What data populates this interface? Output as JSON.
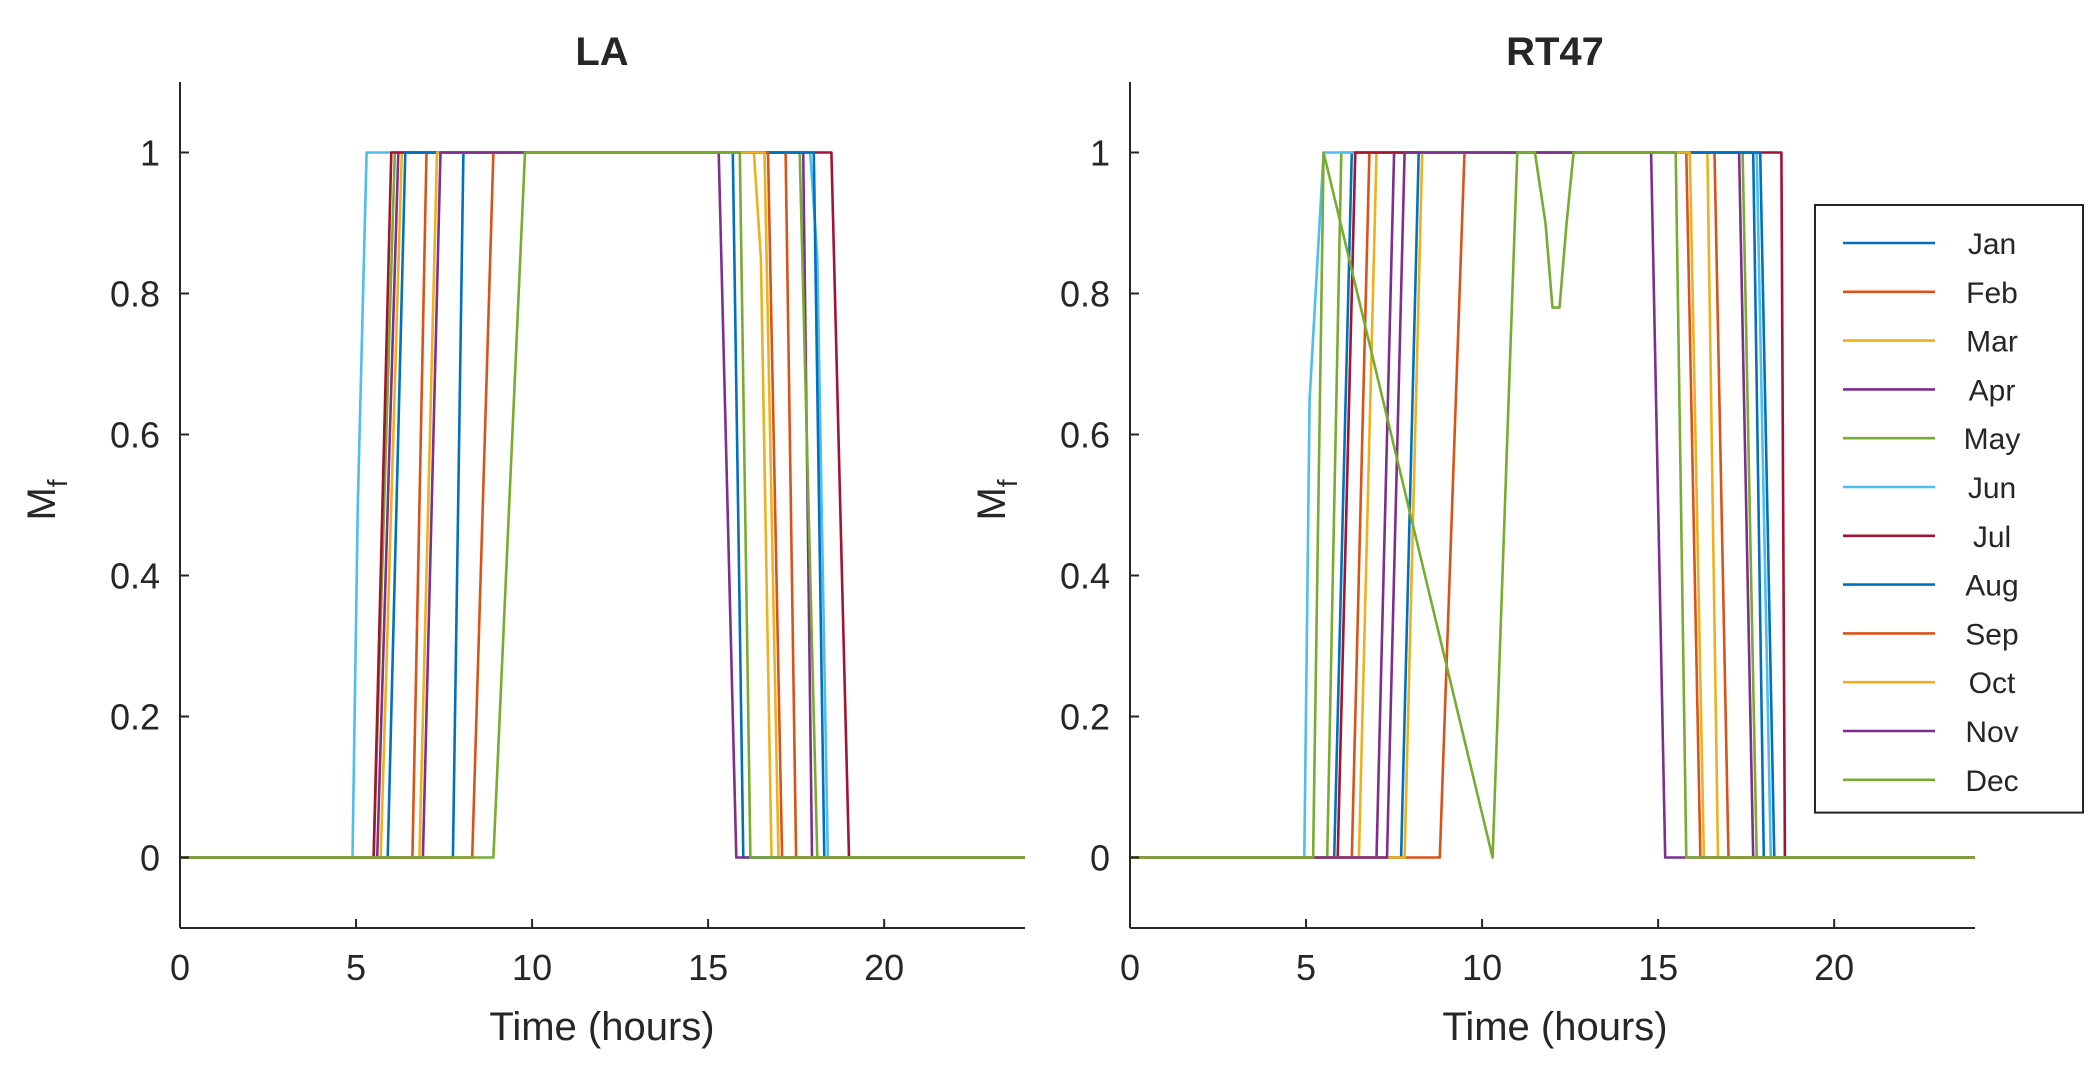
{
  "chart_data": [
    {
      "type": "line",
      "title": "LA",
      "xlabel": "Time (hours)",
      "ylabel": "M",
      "ylabel_sub": "f",
      "xlim": [
        0,
        24
      ],
      "ylim": [
        -0.1,
        1.1
      ],
      "xticks": [
        0,
        5,
        10,
        15,
        20
      ],
      "yticks": [
        0,
        0.2,
        0.4,
        0.6,
        0.8,
        1
      ],
      "xtick_labels": [
        "0",
        "5",
        "10",
        "15",
        "20"
      ],
      "ytick_labels": [
        "0",
        "0.2",
        "0.4",
        "0.6",
        "0.8",
        "1"
      ],
      "grid": false,
      "series": [
        {
          "name": "Jan",
          "color": "#0072BD",
          "x": [
            0,
            7.75,
            8.05,
            24
          ],
          "x2": [
            0,
            15.7,
            16.0,
            24
          ],
          "points": [
            [
              0,
              0
            ],
            [
              7.75,
              0
            ],
            [
              8.05,
              1
            ],
            [
              15.7,
              1
            ],
            [
              16.0,
              0
            ],
            [
              24,
              0
            ]
          ]
        },
        {
          "name": "Feb",
          "color": "#D95319",
          "points": [
            [
              0,
              0
            ],
            [
              6.6,
              0
            ],
            [
              7.0,
              1
            ],
            [
              17.2,
              1
            ],
            [
              17.5,
              0
            ],
            [
              24,
              0
            ]
          ]
        },
        {
          "name": "Mar",
          "color": "#EDB120",
          "points": [
            [
              0,
              0
            ],
            [
              5.7,
              0
            ],
            [
              6.3,
              1
            ],
            [
              16.3,
              1
            ],
            [
              16.5,
              0.85
            ],
            [
              16.8,
              0
            ],
            [
              24,
              0
            ]
          ]
        },
        {
          "name": "Apr",
          "color": "#7E2F8E",
          "points": [
            [
              0,
              0
            ],
            [
              5.6,
              0
            ],
            [
              6.2,
              1
            ],
            [
              17.7,
              1
            ],
            [
              17.95,
              0
            ],
            [
              24,
              0
            ]
          ]
        },
        {
          "name": "May",
          "color": "#77AC30",
          "points": [
            [
              0,
              0
            ],
            [
              5.5,
              0
            ],
            [
              6.1,
              1
            ],
            [
              17.6,
              1
            ],
            [
              18.1,
              0
            ],
            [
              24,
              0
            ]
          ]
        },
        {
          "name": "Jun",
          "color": "#4DBEEE",
          "points": [
            [
              0,
              0
            ],
            [
              4.9,
              0
            ],
            [
              5.05,
              0.5
            ],
            [
              5.3,
              1
            ],
            [
              17.9,
              1
            ],
            [
              18.1,
              0.85
            ],
            [
              18.4,
              0
            ],
            [
              24,
              0
            ]
          ]
        },
        {
          "name": "Jul",
          "color": "#A2142F",
          "points": [
            [
              0,
              0
            ],
            [
              5.5,
              0
            ],
            [
              6.0,
              1
            ],
            [
              18.5,
              1
            ],
            [
              19.0,
              0
            ],
            [
              24,
              0
            ]
          ]
        },
        {
          "name": "Aug",
          "color": "#0072BD",
          "points": [
            [
              0,
              0
            ],
            [
              5.9,
              0
            ],
            [
              6.4,
              1
            ],
            [
              18.0,
              1
            ],
            [
              18.3,
              0
            ],
            [
              24,
              0
            ]
          ]
        },
        {
          "name": "Sep",
          "color": "#D95319",
          "points": [
            [
              0,
              0
            ],
            [
              8.3,
              0
            ],
            [
              8.9,
              1
            ],
            [
              16.7,
              1
            ],
            [
              17.1,
              0
            ],
            [
              24,
              0
            ]
          ]
        },
        {
          "name": "Oct",
          "color": "#EDB120",
          "points": [
            [
              0,
              0
            ],
            [
              6.8,
              0
            ],
            [
              7.3,
              1
            ],
            [
              16.6,
              1
            ],
            [
              17.0,
              0
            ],
            [
              24,
              0
            ]
          ]
        },
        {
          "name": "Nov",
          "color": "#7E2F8E",
          "points": [
            [
              0,
              0
            ],
            [
              6.9,
              0
            ],
            [
              7.4,
              1
            ],
            [
              15.3,
              1
            ],
            [
              15.8,
              0
            ],
            [
              24,
              0
            ]
          ]
        },
        {
          "name": "Dec",
          "color": "#77AC30",
          "points": [
            [
              0,
              0
            ],
            [
              8.9,
              0
            ],
            [
              9.8,
              1
            ],
            [
              15.9,
              1
            ],
            [
              16.2,
              0
            ],
            [
              24,
              0
            ]
          ]
        }
      ]
    },
    {
      "type": "line",
      "title": "RT47",
      "xlabel": "Time (hours)",
      "ylabel": "M",
      "ylabel_sub": "f",
      "xlim": [
        0,
        24
      ],
      "ylim": [
        -0.1,
        1.1
      ],
      "xticks": [
        0,
        5,
        10,
        15,
        20
      ],
      "yticks": [
        0,
        0.2,
        0.4,
        0.6,
        0.8,
        1
      ],
      "xtick_labels": [
        "0",
        "5",
        "10",
        "15",
        "20"
      ],
      "ytick_labels": [
        "0",
        "0.2",
        "0.4",
        "0.6",
        "0.8",
        "1"
      ],
      "grid": false,
      "legend_position": "right",
      "series": [
        {
          "name": "Jan",
          "color": "#0072BD",
          "points": [
            [
              0,
              0
            ],
            [
              5.8,
              0
            ],
            [
              6.3,
              1
            ],
            [
              17.7,
              1
            ],
            [
              18.0,
              0
            ],
            [
              24,
              0
            ]
          ]
        },
        {
          "name": "Feb",
          "color": "#D95319",
          "points": [
            [
              0,
              0
            ],
            [
              6.3,
              0
            ],
            [
              6.8,
              1
            ],
            [
              16.6,
              1
            ],
            [
              17.0,
              0
            ],
            [
              24,
              0
            ]
          ]
        },
        {
          "name": "Mar",
          "color": "#EDB120",
          "points": [
            [
              0,
              0
            ],
            [
              6.5,
              0
            ],
            [
              7.0,
              1
            ],
            [
              16.4,
              1
            ],
            [
              16.7,
              0
            ],
            [
              24,
              0
            ]
          ]
        },
        {
          "name": "Apr",
          "color": "#7E2F8E",
          "points": [
            [
              0,
              0
            ],
            [
              7.0,
              0
            ],
            [
              7.5,
              1
            ],
            [
              17.3,
              1
            ],
            [
              17.7,
              0
            ],
            [
              24,
              0
            ]
          ]
        },
        {
          "name": "May",
          "color": "#77AC30",
          "points": [
            [
              0,
              0
            ],
            [
              5.6,
              0
            ],
            [
              6.0,
              1
            ],
            [
              17.4,
              1
            ],
            [
              17.8,
              0
            ],
            [
              24,
              0
            ]
          ]
        },
        {
          "name": "Jun",
          "color": "#4DBEEE",
          "points": [
            [
              0,
              0
            ],
            [
              4.95,
              0
            ],
            [
              5.1,
              0.65
            ],
            [
              5.5,
              1
            ],
            [
              17.8,
              1
            ],
            [
              18.2,
              0
            ],
            [
              24,
              0
            ]
          ]
        },
        {
          "name": "Jul",
          "color": "#A2142F",
          "points": [
            [
              0,
              0
            ],
            [
              5.9,
              0
            ],
            [
              6.4,
              1
            ],
            [
              18.5,
              1
            ],
            [
              18.6,
              0
            ],
            [
              24,
              0
            ]
          ]
        },
        {
          "name": "Aug",
          "color": "#0072BD",
          "points": [
            [
              0,
              0
            ],
            [
              7.7,
              0
            ],
            [
              8.2,
              1
            ],
            [
              17.9,
              1
            ],
            [
              18.3,
              0
            ],
            [
              24,
              0
            ]
          ]
        },
        {
          "name": "Sep",
          "color": "#D95319",
          "points": [
            [
              0,
              0
            ],
            [
              8.8,
              0
            ],
            [
              9.5,
              1
            ],
            [
              15.8,
              1
            ],
            [
              16.2,
              0
            ],
            [
              24,
              0
            ]
          ]
        },
        {
          "name": "Oct",
          "color": "#EDB120",
          "points": [
            [
              0,
              0
            ],
            [
              7.8,
              0
            ],
            [
              8.3,
              1
            ],
            [
              15.9,
              1
            ],
            [
              16.3,
              0
            ],
            [
              24,
              0
            ]
          ]
        },
        {
          "name": "Nov",
          "color": "#7E2F8E",
          "points": [
            [
              0,
              0
            ],
            [
              7.3,
              0
            ],
            [
              7.8,
              1
            ],
            [
              14.8,
              1
            ],
            [
              15.2,
              0
            ],
            [
              24,
              0
            ]
          ]
        },
        {
          "name": "Dec",
          "color": "#77AC30",
          "points": [
            [
              0,
              0
            ],
            [
              5.2,
              0
            ],
            [
              5.5,
              1
            ],
            [
              10.3,
              0
            ],
            [
              11.0,
              1
            ],
            [
              11.5,
              1
            ],
            [
              11.8,
              0.9
            ],
            [
              12.0,
              0.78
            ],
            [
              12.2,
              0.78
            ],
            [
              12.4,
              0.9
            ],
            [
              12.6,
              1
            ],
            [
              15.5,
              1
            ],
            [
              15.8,
              0
            ],
            [
              24,
              0
            ]
          ]
        }
      ]
    }
  ]
}
